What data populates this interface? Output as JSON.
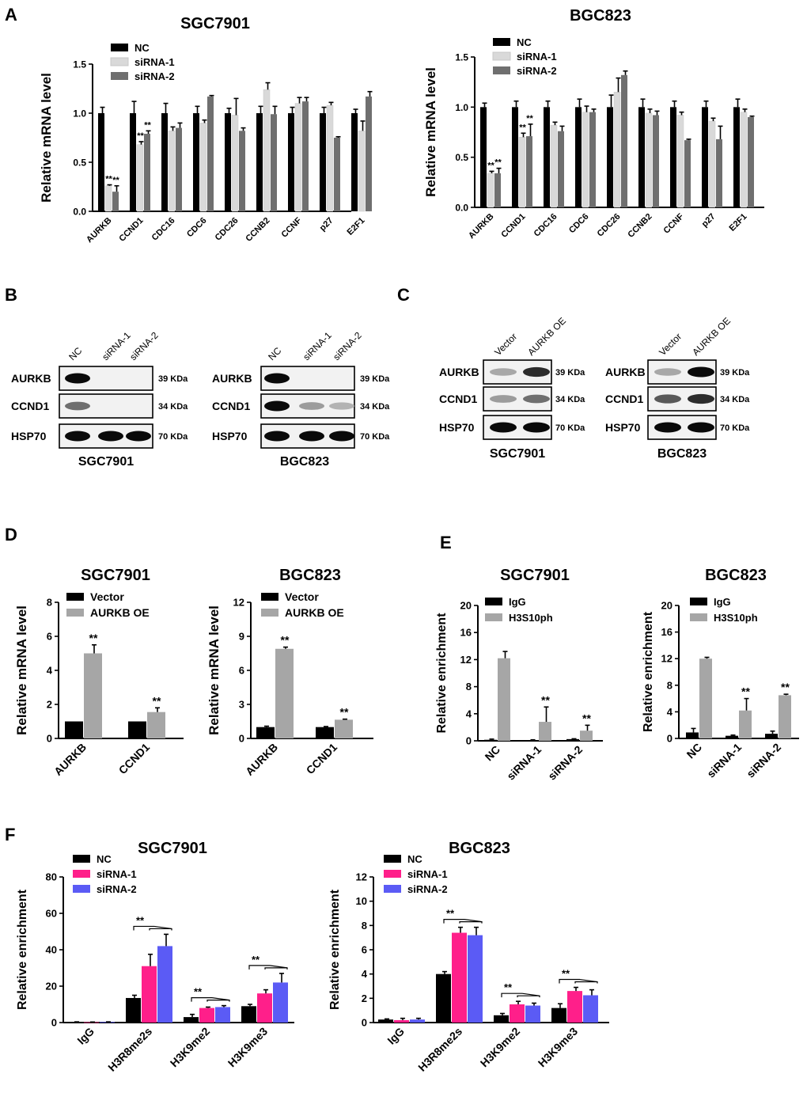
{
  "figure": {
    "panel_labels": {
      "A": "A",
      "B": "B",
      "C": "C",
      "D": "D",
      "E": "E",
      "F": "F"
    },
    "western_b": {
      "left": {
        "cell_line": "SGC7901",
        "lanes": [
          "NC",
          "siRNA-1",
          "siRNA-2"
        ],
        "proteins": [
          "AURKB",
          "CCND1",
          "HSP70"
        ],
        "sizes": [
          "39 KDa",
          "34 KDa",
          "70 KDa"
        ],
        "band_intensity": [
          [
            1,
            0,
            0
          ],
          [
            0.55,
            0,
            0
          ],
          [
            1,
            1,
            1
          ]
        ]
      },
      "right": {
        "cell_line": "BGC823",
        "lanes": [
          "NC",
          "siRNA-1",
          "siRNA-2"
        ],
        "proteins": [
          "AURKB",
          "CCND1",
          "HSP70"
        ],
        "sizes": [
          "39 KDa",
          "34 KDa",
          "70 KDa"
        ],
        "band_intensity": [
          [
            1,
            0,
            0
          ],
          [
            1,
            0.35,
            0.25
          ],
          [
            1,
            1,
            1
          ]
        ]
      }
    },
    "western_c": {
      "left": {
        "cell_line": "SGC7901",
        "lanes": [
          "Vector",
          "AURKB OE"
        ],
        "proteins": [
          "AURKB",
          "CCND1",
          "HSP70"
        ],
        "sizes": [
          "39 KDa",
          "34 KDa",
          "70 KDa"
        ],
        "band_intensity": [
          [
            0.3,
            0.85
          ],
          [
            0.35,
            0.55
          ],
          [
            1,
            1
          ]
        ]
      },
      "right": {
        "cell_line": "BGC823",
        "lanes": [
          "Vector",
          "AURKB OE"
        ],
        "proteins": [
          "AURKB",
          "CCND1",
          "HSP70"
        ],
        "sizes": [
          "39 KDa",
          "34 KDa",
          "70 KDa"
        ],
        "band_intensity": [
          [
            0.3,
            1
          ],
          [
            0.65,
            0.85
          ],
          [
            1,
            1
          ]
        ]
      }
    }
  },
  "chart_data": [
    {
      "id": "A-SGC7901",
      "panel": "A",
      "type": "bar",
      "title": "SGC7901",
      "ylabel": "Relative mRNA level",
      "xlabel": "",
      "ylim": [
        0,
        1.5
      ],
      "yticks": [
        "0.0",
        "0.5",
        "1.0",
        "1.5"
      ],
      "categories": [
        "AURKB",
        "CCND1",
        "CDC16",
        "CDC6",
        "CDC26",
        "CCNB2",
        "CCNF",
        "p27",
        "E2F1"
      ],
      "series": [
        {
          "name": "NC",
          "color": "#000000",
          "values": [
            1.0,
            1.0,
            1.0,
            1.0,
            1.0,
            1.0,
            1.0,
            1.0,
            1.0
          ],
          "errors": [
            0.06,
            0.12,
            0.1,
            0.07,
            0.05,
            0.07,
            0.06,
            0.06,
            0.04
          ]
        },
        {
          "name": "siRNA-1",
          "color": "#d9d9d9",
          "values": [
            0.26,
            0.68,
            0.82,
            0.9,
            0.98,
            1.24,
            1.1,
            1.08,
            0.82
          ],
          "errors": [
            0.01,
            0.03,
            0.04,
            0.03,
            0.17,
            0.07,
            0.06,
            0.03,
            0.1
          ],
          "annotations": [
            "**",
            "**",
            "",
            "",
            "",
            "",
            "",
            "",
            ""
          ]
        },
        {
          "name": "siRNA-2",
          "color": "#6f6f6f",
          "values": [
            0.2,
            0.79,
            0.85,
            1.17,
            0.82,
            0.99,
            1.12,
            0.75,
            1.17
          ],
          "errors": [
            0.06,
            0.03,
            0.05,
            0.01,
            0.03,
            0.08,
            0.04,
            0.01,
            0.05
          ],
          "annotations": [
            "**",
            "**",
            "",
            "",
            "",
            "",
            "",
            "",
            ""
          ]
        }
      ],
      "legend_position": "top-left"
    },
    {
      "id": "A-BGC823",
      "panel": "A",
      "type": "bar",
      "title": "BGC823",
      "ylabel": "Relative mRNA level",
      "xlabel": "",
      "ylim": [
        0,
        1.5
      ],
      "yticks": [
        "0.0",
        "0.5",
        "1.0",
        "1.5"
      ],
      "categories": [
        "AURKB",
        "CCND1",
        "CDC16",
        "CDC6",
        "CDC26",
        "CCNB2",
        "CCNF",
        "p27",
        "E2F1"
      ],
      "series": [
        {
          "name": "NC",
          "color": "#000000",
          "values": [
            1.0,
            1.0,
            1.0,
            1.0,
            1.0,
            1.0,
            1.0,
            1.0,
            1.0
          ],
          "errors": [
            0.04,
            0.06,
            0.06,
            0.08,
            0.12,
            0.08,
            0.06,
            0.06,
            0.08
          ]
        },
        {
          "name": "siRNA-1",
          "color": "#d9d9d9",
          "values": [
            0.34,
            0.7,
            0.82,
            0.95,
            1.15,
            0.94,
            0.92,
            0.86,
            0.95
          ],
          "errors": [
            0.02,
            0.04,
            0.03,
            0.06,
            0.14,
            0.04,
            0.03,
            0.03,
            0.03
          ]
        },
        {
          "name": "siRNA-2",
          "color": "#6f6f6f",
          "values": [
            0.34,
            0.71,
            0.76,
            0.95,
            1.32,
            0.92,
            0.67,
            0.68,
            0.9
          ],
          "errors": [
            0.05,
            0.12,
            0.05,
            0.03,
            0.04,
            0.04,
            0.01,
            0.13,
            0.01
          ]
        }
      ],
      "star_annotations": [
        {
          "category": 0,
          "series": 1,
          "text": "**"
        },
        {
          "category": 0,
          "series": 2,
          "text": "**"
        },
        {
          "category": 1,
          "series": 1,
          "text": "**"
        },
        {
          "category": 1,
          "series": 2,
          "text": "**"
        }
      ],
      "legend_position": "top-left"
    },
    {
      "id": "D-SGC7901",
      "panel": "D",
      "type": "bar",
      "title": "SGC7901",
      "ylabel": "Relative mRNA level",
      "xlabel": "",
      "ylim": [
        0,
        8
      ],
      "yticks": [
        "0",
        "2",
        "4",
        "6",
        "8"
      ],
      "categories": [
        "AURKB",
        "CCND1"
      ],
      "series": [
        {
          "name": "Vector",
          "color": "#000000",
          "values": [
            1.0,
            1.0
          ],
          "errors": [
            0,
            0
          ]
        },
        {
          "name": "AURKB OE",
          "color": "#a6a6a6",
          "values": [
            5.0,
            1.55
          ],
          "errors": [
            0.5,
            0.25
          ]
        }
      ],
      "star_annotations": [
        {
          "category": 0,
          "series": 1,
          "text": "**"
        },
        {
          "category": 1,
          "series": 1,
          "text": "**"
        }
      ],
      "legend_position": "top-left"
    },
    {
      "id": "D-BGC823",
      "panel": "D",
      "type": "bar",
      "title": "BGC823",
      "ylabel": "Relative mRNA level",
      "xlabel": "",
      "ylim": [
        0,
        12
      ],
      "yticks": [
        "0",
        "3",
        "6",
        "9",
        "12"
      ],
      "categories": [
        "AURKB",
        "CCND1"
      ],
      "series": [
        {
          "name": "Vector",
          "color": "#000000",
          "values": [
            1.0,
            1.0
          ],
          "errors": [
            0.08,
            0.05
          ]
        },
        {
          "name": "AURKB OE",
          "color": "#a6a6a6",
          "values": [
            7.9,
            1.65
          ],
          "errors": [
            0.15,
            0.05
          ]
        }
      ],
      "star_annotations": [
        {
          "category": 0,
          "series": 1,
          "text": "**"
        },
        {
          "category": 1,
          "series": 1,
          "text": "**"
        }
      ],
      "legend_position": "top-left"
    },
    {
      "id": "E-SGC7901",
      "panel": "E",
      "type": "bar",
      "title": "SGC7901",
      "ylabel": "Relative enrichment",
      "xlabel": "",
      "ylim": [
        0,
        20
      ],
      "yticks": [
        "0",
        "4",
        "8",
        "12",
        "16",
        "20"
      ],
      "categories": [
        "NC",
        "siRNA-1",
        "siRNA-2"
      ],
      "series": [
        {
          "name": "IgG",
          "color": "#000000",
          "values": [
            0.15,
            0.1,
            0.25
          ],
          "errors": [
            0.1,
            0.05,
            0.05
          ]
        },
        {
          "name": "H3S10ph",
          "color": "#a6a6a6",
          "values": [
            12.2,
            2.8,
            1.5
          ],
          "errors": [
            1.0,
            2.2,
            0.8
          ]
        }
      ],
      "star_annotations": [
        {
          "category": 1,
          "series": 1,
          "text": "**"
        },
        {
          "category": 2,
          "series": 1,
          "text": "**"
        }
      ],
      "legend_position": "top-left"
    },
    {
      "id": "E-BGC823",
      "panel": "E",
      "type": "bar",
      "title": "BGC823",
      "ylabel": "Relative enrichment",
      "xlabel": "",
      "ylim": [
        0,
        20
      ],
      "yticks": [
        "0",
        "4",
        "8",
        "12",
        "16",
        "20"
      ],
      "categories": [
        "NC",
        "siRNA-1",
        "siRNA-2"
      ],
      "series": [
        {
          "name": "IgG",
          "color": "#000000",
          "values": [
            0.9,
            0.4,
            0.7
          ],
          "errors": [
            0.6,
            0.1,
            0.4
          ]
        },
        {
          "name": "H3S10ph",
          "color": "#a6a6a6",
          "values": [
            12.0,
            4.2,
            6.5
          ],
          "errors": [
            0.2,
            1.8,
            0.15
          ]
        }
      ],
      "star_annotations": [
        {
          "category": 1,
          "series": 1,
          "text": "**"
        },
        {
          "category": 2,
          "series": 1,
          "text": "**"
        }
      ],
      "legend_position": "top-left"
    },
    {
      "id": "F-SGC7901",
      "panel": "F",
      "type": "bar",
      "title": "SGC7901",
      "ylabel": "Relative enrichment",
      "xlabel": "",
      "ylim": [
        0,
        80
      ],
      "yticks": [
        "0",
        "20",
        "40",
        "60",
        "80"
      ],
      "categories": [
        "IgG",
        "H3R8me2s",
        "H3K9me2",
        "H3K9me3"
      ],
      "series": [
        {
          "name": "NC",
          "color": "#000000",
          "values": [
            0.3,
            13.5,
            3.0,
            9.0
          ],
          "errors": [
            0.1,
            1.5,
            1.5,
            1.0
          ]
        },
        {
          "name": "siRNA-1",
          "color": "#ff1f8a",
          "values": [
            0.2,
            31.0,
            8.0,
            16.0
          ],
          "errors": [
            0.1,
            6.5,
            0.5,
            2.0
          ]
        },
        {
          "name": "siRNA-2",
          "color": "#5b5bf5",
          "values": [
            0.3,
            42.0,
            8.5,
            22.0
          ],
          "errors": [
            0.1,
            6.5,
            0.8,
            5.0
          ]
        }
      ],
      "bracket_annotations": [
        {
          "category": 1,
          "text": "**"
        },
        {
          "category": 2,
          "text": "**"
        },
        {
          "category": 3,
          "text": "**"
        }
      ],
      "legend_position": "top-left"
    },
    {
      "id": "F-BGC823",
      "panel": "F",
      "type": "bar",
      "title": "BGC823",
      "ylabel": "Relative enrichment",
      "xlabel": "",
      "ylim": [
        0,
        12
      ],
      "yticks": [
        "0",
        "2",
        "4",
        "6",
        "8",
        "10",
        "12"
      ],
      "categories": [
        "IgG",
        "H3R8me2s",
        "H3K9me2",
        "H3K9me3"
      ],
      "series": [
        {
          "name": "NC",
          "color": "#000000",
          "values": [
            0.25,
            4.0,
            0.6,
            1.2
          ],
          "errors": [
            0.05,
            0.2,
            0.15,
            0.35
          ]
        },
        {
          "name": "siRNA-1",
          "color": "#ff1f8a",
          "values": [
            0.2,
            7.4,
            1.5,
            2.6
          ],
          "errors": [
            0.15,
            0.45,
            0.25,
            0.3
          ]
        },
        {
          "name": "siRNA-2",
          "color": "#5b5bf5",
          "values": [
            0.25,
            7.2,
            1.4,
            2.25
          ],
          "errors": [
            0.1,
            0.65,
            0.2,
            0.45
          ]
        }
      ],
      "bracket_annotations": [
        {
          "category": 1,
          "text": "**"
        },
        {
          "category": 2,
          "text": "**"
        },
        {
          "category": 3,
          "text": "**"
        }
      ],
      "legend_position": "top-left"
    }
  ]
}
